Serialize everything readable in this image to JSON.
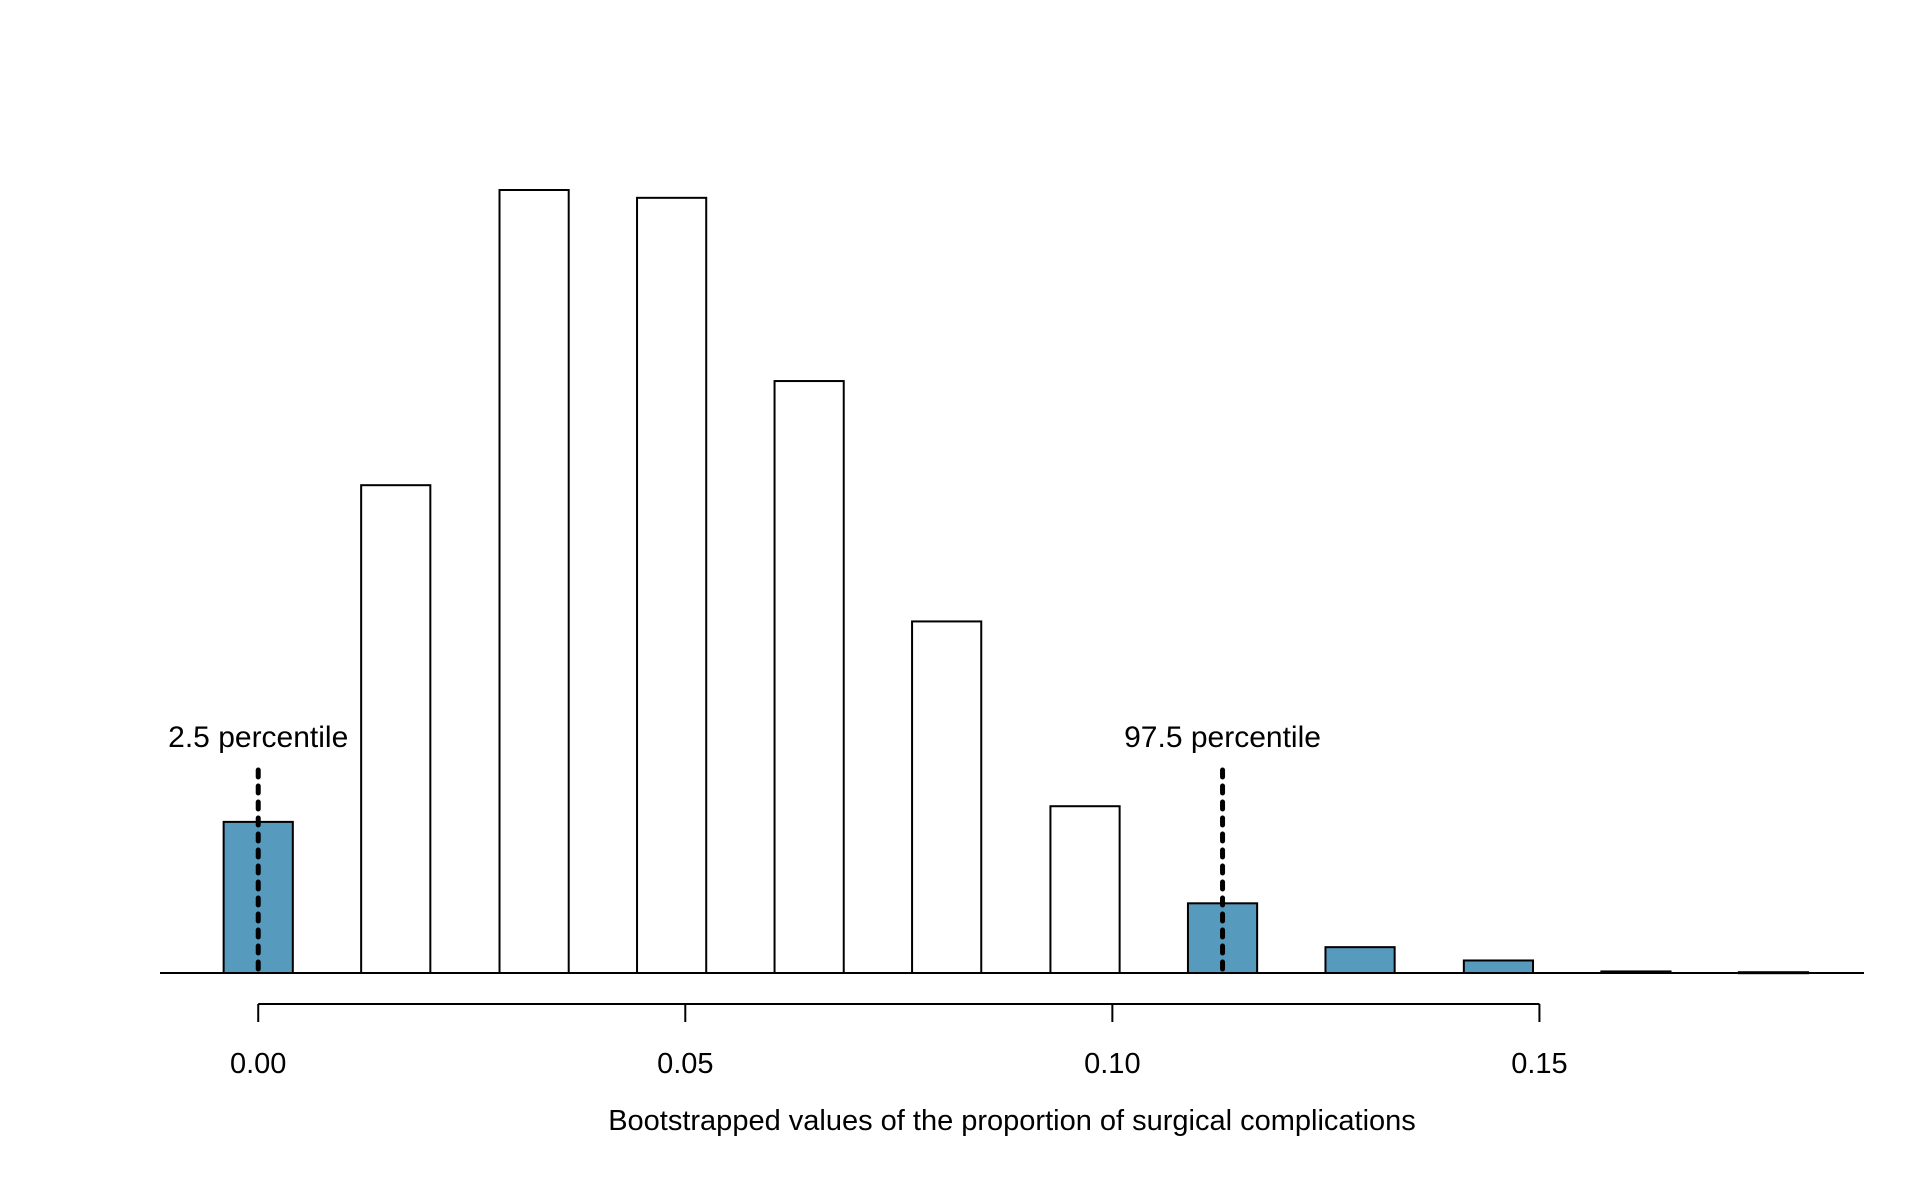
{
  "chart_data": {
    "type": "bar",
    "subtype": "histogram",
    "xlabel": "Bootstrapped values of the proportion of surgical complications",
    "ylabel": "",
    "title": "",
    "xlim": [
      -0.0115,
      0.188
    ],
    "ylim": [
      0,
      1
    ],
    "x_ticks": [
      {
        "value": 0.0,
        "label": "0.00"
      },
      {
        "value": 0.05,
        "label": "0.05"
      },
      {
        "value": 0.1,
        "label": "0.10"
      },
      {
        "value": 0.15,
        "label": "0.15"
      }
    ],
    "bar_width": 0.0081,
    "bins": [
      {
        "x": 0.0,
        "height": 0.193,
        "shaded": true
      },
      {
        "x": 0.0161,
        "height": 0.623,
        "shaded": false
      },
      {
        "x": 0.0323,
        "height": 1.0,
        "shaded": false
      },
      {
        "x": 0.0484,
        "height": 0.99,
        "shaded": false
      },
      {
        "x": 0.0645,
        "height": 0.756,
        "shaded": false
      },
      {
        "x": 0.0806,
        "height": 0.449,
        "shaded": false
      },
      {
        "x": 0.0968,
        "height": 0.213,
        "shaded": false
      },
      {
        "x": 0.1129,
        "height": 0.089,
        "shaded": true
      },
      {
        "x": 0.129,
        "height": 0.033,
        "shaded": true
      },
      {
        "x": 0.1452,
        "height": 0.016,
        "shaded": true
      },
      {
        "x": 0.1613,
        "height": 0.002,
        "shaded": true
      },
      {
        "x": 0.1774,
        "height": 0.001,
        "shaded": true
      }
    ],
    "percentiles": [
      {
        "label": "2.5 percentile",
        "value": 0.0
      },
      {
        "label": "97.5 percentile",
        "value": 0.1129
      }
    ],
    "colors": {
      "shaded": "#569BBD",
      "unshaded": "#ffffff",
      "outline": "#000000"
    },
    "grid": false,
    "legend": "none"
  }
}
